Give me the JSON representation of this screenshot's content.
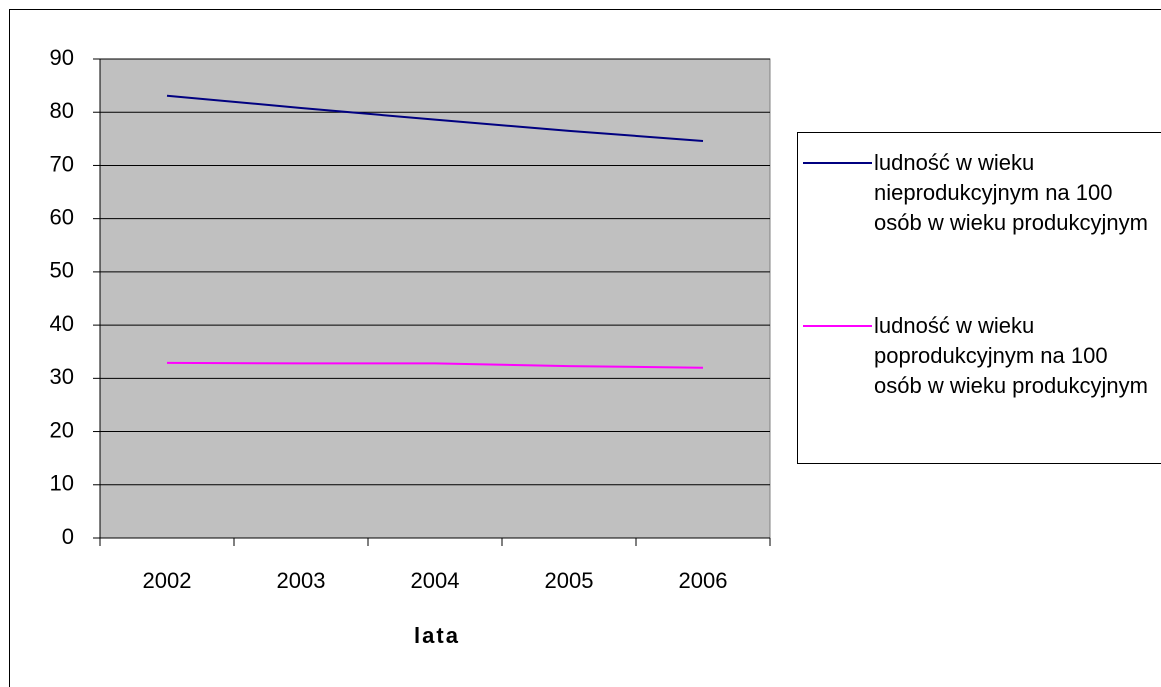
{
  "chart_data": {
    "type": "line",
    "x_label": "lata",
    "categories": [
      "2002",
      "2003",
      "2004",
      "2005",
      "2006"
    ],
    "series": [
      {
        "name": "ludność w wieku nieprodukcyjnym na 100 osób w wieku produkcyjnym",
        "color": "#000080",
        "values": [
          83.1,
          80.8,
          78.6,
          76.5,
          74.6
        ]
      },
      {
        "name": "ludność w wieku poprodukcyjnym na 100 osób w wieku produkcyjnym",
        "color": "#ff00ff",
        "values": [
          32.9,
          32.8,
          32.8,
          32.3,
          32.0
        ]
      }
    ],
    "ylim": [
      0,
      90
    ],
    "yticks": [
      0,
      10,
      20,
      30,
      40,
      50,
      60,
      70,
      80,
      90
    ],
    "grid": true,
    "legend": "right"
  }
}
